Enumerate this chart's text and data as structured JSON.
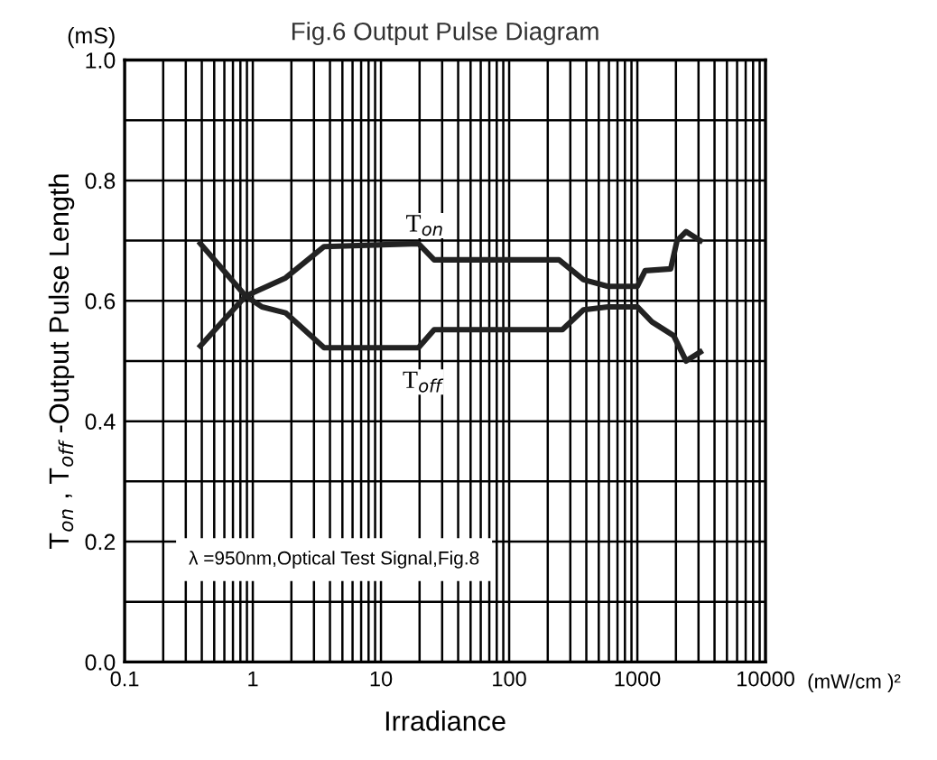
{
  "chart_data": {
    "type": "line",
    "title": "Fig.6 Output Pulse Diagram",
    "xlabel": "Irradiance",
    "ylabel": "T$_{on}$ , T$_{off}$ -Output Pulse Length",
    "annotations": [
      "(mS)",
      "(mW/cm )²",
      {
        "text": "T$_{on}$",
        "x": 22,
        "y": 0.725
      },
      {
        "text": "T$_{off}$",
        "x": 21,
        "y": 0.465
      },
      "λ =950nm,Optical Test Signal,Fig.8"
    ],
    "series": [
      {
        "color": "#222222",
        "x": [
          0.39,
          0.88,
          1.8,
          3.6,
          19.6,
          26,
          245,
          380,
          590,
          1000,
          1150,
          1820,
          2040,
          2400,
          3100
        ],
        "values": [
          0.525,
          0.608,
          0.638,
          0.69,
          0.695,
          0.668,
          0.668,
          0.635,
          0.624,
          0.624,
          0.65,
          0.653,
          0.7,
          0.715,
          0.7
        ]
      },
      {
        "color": "#222222",
        "x": [
          0.39,
          0.88,
          1.18,
          1.8,
          3.6,
          19.6,
          26,
          260,
          380,
          590,
          1000,
          1300,
          1920,
          2400,
          3100
        ],
        "values": [
          0.695,
          0.608,
          0.59,
          0.58,
          0.522,
          0.522,
          0.552,
          0.552,
          0.585,
          0.59,
          0.59,
          0.565,
          0.542,
          0.5,
          0.515
        ]
      }
    ],
    "log": "x",
    "xlim": [
      0.1,
      10000
    ],
    "xticks": [
      0.1,
      1,
      10,
      100,
      1000,
      10000
    ],
    "ylim": [
      0,
      1.0
    ],
    "yticks": [
      {
        "value": 0,
        "label": "0.0"
      },
      {
        "value": 0.1,
        "label": null
      },
      {
        "value": 0.2,
        "label": "0.2"
      },
      {
        "value": 0.3,
        "label": null
      },
      {
        "value": 0.4,
        "label": "0.4"
      },
      {
        "value": 0.5,
        "label": null
      },
      {
        "value": 0.6,
        "label": "0.6"
      },
      {
        "value": 0.7,
        "label": null
      },
      {
        "value": 0.8,
        "label": "0.8"
      },
      {
        "value": 0.9,
        "label": null
      },
      {
        "value": 1.0,
        "label": "1.0"
      }
    ],
    "grid": true,
    "marker": "none",
    "line_style": "solid"
  }
}
